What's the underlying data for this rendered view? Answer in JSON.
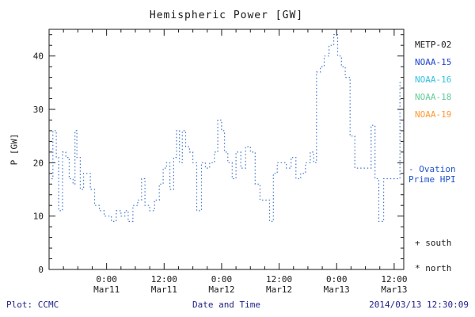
{
  "title": "Hemispheric Power [GW]",
  "footer": {
    "left": "Plot: CCMC",
    "right": "2014/03/13 12:30:09",
    "color": "#22228c"
  },
  "legend": {
    "satellites": [
      {
        "label": "METP-02",
        "color": "#1a1a1a"
      },
      {
        "label": "NOAA-15",
        "color": "#2244cc"
      },
      {
        "label": "NOAA-16",
        "color": "#33c4e0"
      },
      {
        "label": "NOAA-18",
        "color": "#66cc99"
      },
      {
        "label": "NOAA-19",
        "color": "#ff9933"
      }
    ],
    "ovation_line1": "- Ovation",
    "ovation_line2": "Prime HPI",
    "ovation_color": "#2255cc",
    "south": "+ south",
    "north": "* north"
  },
  "chart_data": {
    "type": "line",
    "style": "dotted-step",
    "title": "Hemispheric Power [GW]",
    "xlabel": "Date and Time",
    "ylabel": "P [GW]",
    "line_color": "#4477cc",
    "xlim": [
      0,
      74
    ],
    "ylim": [
      0,
      45
    ],
    "x_unit": "hours since 2014/03/10 12:00",
    "yticks": [
      0,
      10,
      20,
      30,
      40
    ],
    "xticks": [
      {
        "t": 12,
        "line1": "0:00",
        "line2": "Mar11"
      },
      {
        "t": 24,
        "line1": "12:00",
        "line2": "Mar11"
      },
      {
        "t": 36,
        "line1": "0:00",
        "line2": "Mar12"
      },
      {
        "t": 48,
        "line1": "12:00",
        "line2": "Mar12"
      },
      {
        "t": 60,
        "line1": "0:00",
        "line2": "Mar13"
      },
      {
        "t": 72,
        "line1": "12:00",
        "line2": "Mar13"
      }
    ],
    "points": [
      [
        0.5,
        17
      ],
      [
        0.8,
        26
      ],
      [
        1.5,
        21
      ],
      [
        2,
        11
      ],
      [
        2.8,
        22
      ],
      [
        3.5,
        21
      ],
      [
        4.2,
        17
      ],
      [
        5,
        16
      ],
      [
        5.4,
        26
      ],
      [
        5.8,
        21
      ],
      [
        6.5,
        15
      ],
      [
        7.2,
        18
      ],
      [
        8,
        18
      ],
      [
        8.6,
        15
      ],
      [
        9.5,
        12
      ],
      [
        10.5,
        11
      ],
      [
        11.5,
        10
      ],
      [
        12.5,
        10
      ],
      [
        13,
        9
      ],
      [
        14,
        11
      ],
      [
        15,
        10
      ],
      [
        15.8,
        11
      ],
      [
        16.5,
        9
      ],
      [
        17.5,
        12
      ],
      [
        18.5,
        13
      ],
      [
        19.3,
        17
      ],
      [
        20,
        12
      ],
      [
        21,
        11
      ],
      [
        22,
        13
      ],
      [
        23,
        16
      ],
      [
        23.8,
        19
      ],
      [
        24.5,
        20
      ],
      [
        25.2,
        15
      ],
      [
        26,
        21
      ],
      [
        26.6,
        26
      ],
      [
        27.2,
        20
      ],
      [
        27.8,
        26
      ],
      [
        28.5,
        23
      ],
      [
        29.3,
        22
      ],
      [
        30,
        20
      ],
      [
        30.8,
        11
      ],
      [
        31.8,
        20
      ],
      [
        32.6,
        19
      ],
      [
        33.5,
        20
      ],
      [
        34.5,
        22
      ],
      [
        35.2,
        28
      ],
      [
        36,
        26
      ],
      [
        36.6,
        22
      ],
      [
        37.3,
        20
      ],
      [
        38.2,
        17
      ],
      [
        39,
        22
      ],
      [
        40,
        19
      ],
      [
        41,
        23
      ],
      [
        42,
        22
      ],
      [
        43,
        16
      ],
      [
        44,
        13
      ],
      [
        46,
        9
      ],
      [
        46.8,
        18
      ],
      [
        47.6,
        20
      ],
      [
        48.5,
        20
      ],
      [
        49.5,
        19
      ],
      [
        50.5,
        21
      ],
      [
        51.5,
        17
      ],
      [
        52.5,
        18
      ],
      [
        53.5,
        20
      ],
      [
        54.5,
        22
      ],
      [
        55.2,
        20
      ],
      [
        55.8,
        37
      ],
      [
        56.6,
        38
      ],
      [
        57.4,
        40
      ],
      [
        58.4,
        42
      ],
      [
        59.4,
        44
      ],
      [
        60.2,
        40
      ],
      [
        61,
        38
      ],
      [
        61.8,
        36
      ],
      [
        62.8,
        25
      ],
      [
        63.8,
        19
      ],
      [
        65,
        19
      ],
      [
        66.5,
        19
      ],
      [
        67.2,
        27
      ],
      [
        68,
        17
      ],
      [
        68.8,
        9
      ],
      [
        69.8,
        17
      ],
      [
        71.5,
        17
      ],
      [
        72.5,
        17
      ],
      [
        73.2,
        35
      ],
      [
        73.8,
        35
      ]
    ]
  }
}
